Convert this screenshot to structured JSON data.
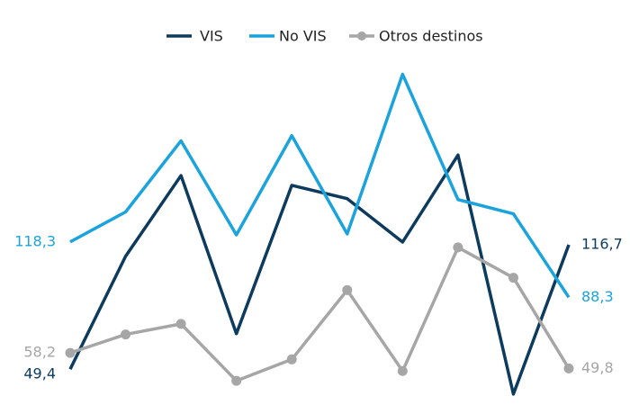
{
  "chart_data": {
    "type": "line",
    "categories": [
      null,
      null,
      null,
      null,
      null,
      null,
      null,
      null,
      null,
      null
    ],
    "ylim": [
      30,
      220
    ],
    "legend": "top",
    "series": [
      {
        "name": "VIS",
        "color": "#0d3b5e",
        "values": [
          49.4,
          110.5,
          154.2,
          68.6,
          148.9,
          141.7,
          118.2,
          165.3,
          35.9,
          116.7
        ],
        "value_labels": [
          "49,4",
          null,
          null,
          null,
          null,
          null,
          null,
          null,
          null,
          "116,7"
        ]
      },
      {
        "name": "No VIS",
        "color": "#1aa3dc",
        "values": [
          118.3,
          134.5,
          173.0,
          122.1,
          175.8,
          122.6,
          209.0,
          141.2,
          133.5,
          88.3
        ],
        "value_labels": [
          "118,3",
          null,
          null,
          null,
          null,
          null,
          null,
          null,
          null,
          "88,3"
        ]
      },
      {
        "name": "Otros destinos",
        "color": "#a6a6a6",
        "markers": true,
        "values": [
          58.2,
          68.2,
          73.9,
          43.1,
          54.7,
          92.2,
          48.4,
          115.3,
          98.9,
          49.8
        ],
        "value_labels": [
          "58,2",
          null,
          null,
          null,
          null,
          null,
          null,
          null,
          null,
          "49,8"
        ]
      }
    ]
  }
}
